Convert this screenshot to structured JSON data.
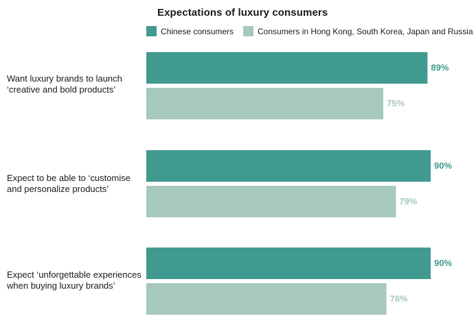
{
  "chart_data": {
    "type": "bar",
    "orientation": "horizontal",
    "title": "Expectations of luxury consumers",
    "categories": [
      [
        "Want luxury brands to launch",
        "‘creative and bold products’"
      ],
      [
        "Expect to be able to ‘customise",
        "and personalize products’"
      ],
      [
        "Expect ‘unforgettable experiences",
        "when buying luxury brands’"
      ]
    ],
    "series": [
      {
        "name": "Chinese consumers",
        "values": [
          89,
          90,
          90
        ],
        "labels": [
          "89%",
          "90%",
          "90%"
        ],
        "color": "#419a8f"
      },
      {
        "name": "Consumers in Hong Kong, South Korea, Japan and Russia",
        "values": [
          75,
          79,
          76
        ],
        "labels": [
          "75%",
          "79%",
          "76%"
        ],
        "color": "#a6c8be"
      }
    ],
    "xlim": [
      0,
      100
    ],
    "grid": false,
    "legend_position": "top"
  }
}
